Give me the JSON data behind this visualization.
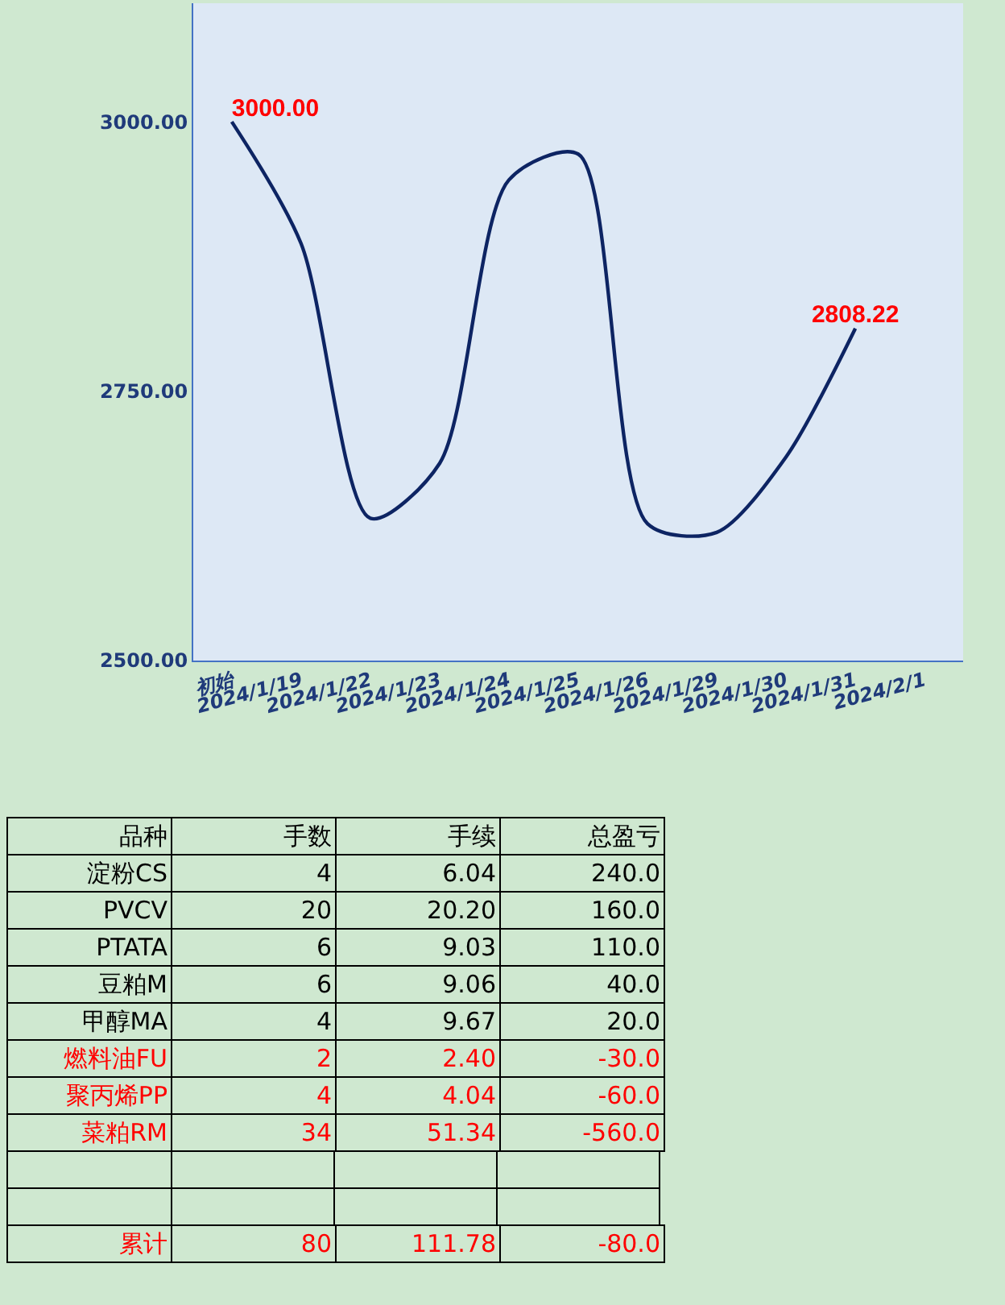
{
  "chart_data": [
    {
      "type": "line",
      "categories": [
        "初始",
        "2024/1/19",
        "2024/1/22",
        "2024/1/23",
        "2024/1/24",
        "2024/1/25",
        "2024/1/26",
        "2024/1/29",
        "2024/1/30",
        "2024/1/31",
        "2024/2/1"
      ],
      "series": [
        {
          "color": "#0d2463",
          "values": [
            3000,
            2887,
            2632,
            2683,
            2946,
            2970,
            2627,
            2619,
            2689,
            2808.22,
            null
          ],
          "value_labels": [
            "3000.00",
            null,
            null,
            null,
            null,
            null,
            null,
            null,
            null,
            "2808.22",
            null
          ]
        }
      ],
      "ylim": [
        2500,
        3110
      ],
      "yticks": [
        {
          "value": 2500,
          "label": "2500.00"
        },
        {
          "value": 2750,
          "label": "2750.00"
        },
        {
          "value": 3000,
          "label": "3000.00"
        }
      ],
      "grid": false,
      "legend": false,
      "marker": "none",
      "line_style": "solid"
    },
    {
      "type": "heatmap",
      "ylabel": "品种",
      "categories": [
        "手数",
        "手续",
        "总盈亏"
      ],
      "y_categories": [
        "淀粉CS",
        "PVCV",
        "PTATA",
        "豆粕M",
        "甲醇MA",
        "燃料油FU",
        "聚丙烯PP",
        "菜粕RM"
      ],
      "cells": [
        [
          4,
          6.04,
          240
        ],
        [
          20,
          20.2,
          160
        ],
        [
          6,
          9.03,
          110
        ],
        [
          6,
          9.06,
          40
        ],
        [
          4,
          9.67,
          20
        ],
        [
          2,
          2.4,
          -30
        ],
        [
          4,
          4.04,
          -60
        ],
        [
          34,
          51.34,
          -560
        ]
      ],
      "cell_labels": [
        [
          "4",
          "6.04",
          "240.0"
        ],
        [
          "20",
          "20.20",
          "160.0"
        ],
        [
          "6",
          "9.03",
          "110.0"
        ],
        [
          "6",
          "9.06",
          "40.0"
        ],
        [
          "4",
          "9.67",
          "20.0"
        ],
        [
          "2",
          "2.40",
          "-30.0"
        ],
        [
          "4",
          "4.04",
          "-60.0"
        ],
        [
          "34",
          "51.34",
          "-560.0"
        ]
      ]
    },
    {
      "type": "heatmap",
      "categories": [
        null,
        null,
        null
      ],
      "y_categories": [
        "累计"
      ],
      "cells": [
        [
          80,
          111.78,
          -80
        ]
      ],
      "cell_labels": [
        [
          "80",
          "111.78",
          "-80.0"
        ]
      ]
    }
  ]
}
